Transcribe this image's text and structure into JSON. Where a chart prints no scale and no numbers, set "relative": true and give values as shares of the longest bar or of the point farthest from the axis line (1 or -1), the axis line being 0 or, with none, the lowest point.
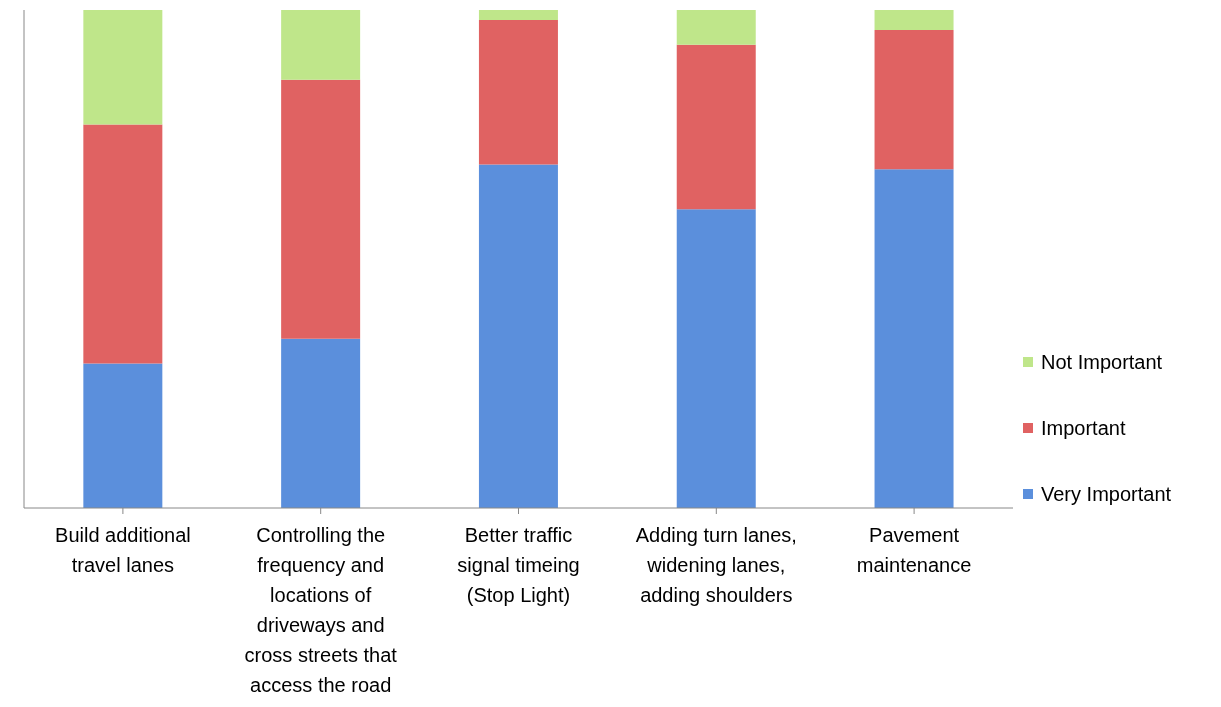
{
  "chart_data": {
    "type": "bar",
    "stacked": true,
    "relative": true,
    "legend": "right",
    "tick_labels": "x",
    "categories": [
      "Build additional travel lanes",
      "Controlling the frequency and locations of driveways and cross streets that access the road",
      "Better traffic signal timeing (Stop Light)",
      "Adding turn lanes, widening lanes, adding shoulders",
      "Pavement maintenance"
    ],
    "series": [
      {
        "name": "Very Important",
        "color": "#5b8fdc",
        "values": [
          0.29,
          0.34,
          0.69,
          0.6,
          0.68
        ]
      },
      {
        "name": "Important",
        "color": "#e06262",
        "values": [
          0.48,
          0.52,
          0.29,
          0.33,
          0.28
        ]
      },
      {
        "name": "Not Important",
        "color": "#bfe68a",
        "values": [
          0.23,
          0.14,
          0.02,
          0.07,
          0.04
        ]
      }
    ]
  }
}
